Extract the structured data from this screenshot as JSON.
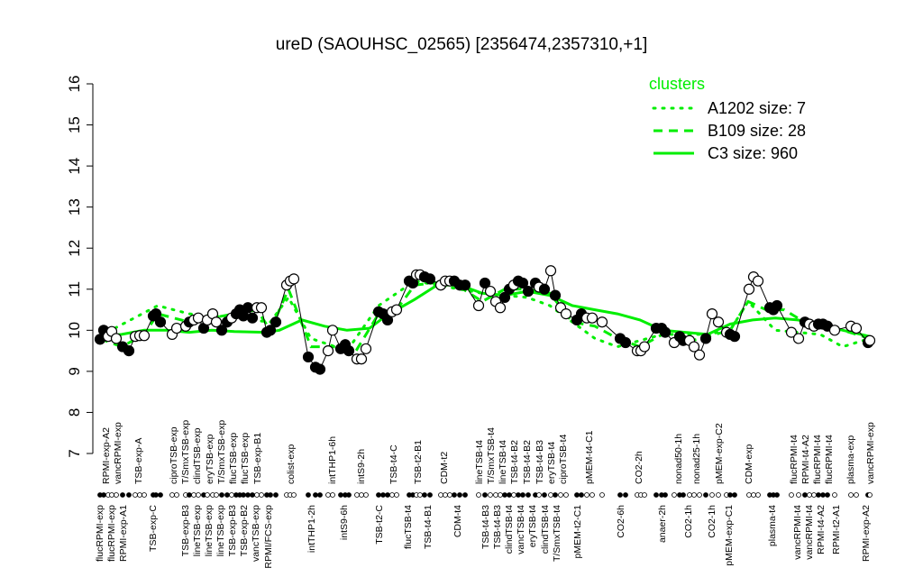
{
  "chart_data": {
    "type": "line",
    "title": "ureD (SAOUHSC_02565) [2356474,2357310,+1]",
    "xlabel": "",
    "ylabel": "",
    "xlim": [
      0,
      171
    ],
    "ylim": [
      7,
      16
    ],
    "yticks": [
      7,
      8,
      9,
      10,
      11,
      12,
      13,
      14,
      15,
      16
    ],
    "grid": false,
    "legend": {
      "title": "clusters",
      "placement": "top-right",
      "entries": [
        {
          "label": "A1202 size: 7",
          "style": "dotted"
        },
        {
          "label": "B109 size: 28",
          "style": "dashed"
        },
        {
          "label": "C3 size: 960",
          "style": "solid"
        }
      ]
    },
    "colors": {
      "clusters": "#00ee00",
      "points": "#000000"
    },
    "points": {
      "x": [
        0.2,
        1,
        2,
        2.8,
        3.8,
        5.2,
        6.6,
        8,
        9,
        10,
        12,
        12.6,
        13.6,
        16.2,
        17.2,
        19.2,
        20,
        21,
        22,
        23.2,
        24,
        25.2,
        26,
        27.2,
        28.4,
        29.4,
        30.4,
        31.2,
        32,
        33,
        34,
        35,
        36,
        37.2,
        38,
        39.2,
        41.6,
        42.4,
        43.2,
        46.4,
        48,
        49,
        50.8,
        51.8,
        53.6,
        54.6,
        55.4,
        57.2,
        58.2,
        59.2,
        62,
        63,
        64,
        65,
        66,
        68.8,
        69.6,
        70.4,
        71.2,
        72.2,
        73.4,
        75.8,
        76.8,
        77.8,
        78.8,
        80,
        81.2,
        84.2,
        85.6,
        86.8,
        88,
        89,
        90,
        91,
        92,
        93,
        94,
        95.2,
        96.8,
        97.6,
        98.8,
        100.2,
        101.2,
        102.4,
        103.6,
        106,
        107,
        108.2,
        109.4,
        111.6,
        115.6,
        116.8,
        119.4,
        120.2,
        121,
        123.6,
        124.8,
        125.6,
        127.6,
        128.8,
        129.6,
        131,
        132,
        133.2,
        134.6,
        136,
        137.4,
        139.2,
        140,
        141,
        144.2,
        145.2,
        146.2,
        148.8,
        149.6,
        150.4,
        153.6,
        155.2,
        156.6,
        157.6,
        158.6,
        159.6,
        160.6,
        161.6,
        163.2,
        166.8,
        168,
        170.6,
        171
      ],
      "y": [
        9.78,
        10.0,
        9.85,
        9.97,
        9.8,
        9.6,
        9.5,
        9.85,
        9.87,
        9.87,
        10.35,
        10.4,
        10.2,
        9.9,
        10.05,
        10.1,
        10.2,
        10.25,
        10.3,
        10.05,
        10.25,
        10.4,
        10.2,
        10.0,
        10.2,
        10.3,
        10.4,
        10.5,
        10.35,
        10.55,
        10.3,
        10.55,
        10.55,
        9.95,
        10.0,
        10.2,
        11.1,
        11.2,
        11.25,
        9.35,
        9.1,
        9.05,
        9.5,
        10.0,
        9.55,
        9.65,
        9.5,
        9.3,
        9.3,
        9.55,
        10.45,
        10.4,
        10.25,
        10.45,
        10.5,
        11.2,
        11.15,
        11.35,
        11.35,
        11.3,
        11.25,
        11.1,
        11.2,
        11.2,
        11.2,
        11.1,
        11.1,
        10.6,
        11.15,
        10.95,
        10.7,
        10.55,
        10.8,
        11.0,
        11.1,
        11.2,
        11.15,
        10.95,
        11.15,
        11.05,
        11.0,
        11.45,
        10.85,
        10.55,
        10.4,
        10.25,
        10.4,
        10.3,
        10.3,
        10.2,
        9.8,
        9.7,
        9.5,
        9.5,
        9.6,
        10.05,
        10.05,
        9.95,
        9.7,
        9.85,
        9.75,
        9.75,
        9.6,
        9.4,
        9.8,
        10.4,
        10.2,
        9.95,
        9.9,
        9.85,
        11.0,
        11.3,
        11.2,
        10.55,
        10.5,
        10.6,
        9.95,
        9.8,
        10.2,
        10.15,
        10.1,
        10.15,
        10.15,
        10.1,
        10.0,
        10.1,
        10.05,
        9.7,
        9.75
      ],
      "filled": [
        1,
        1,
        0,
        0,
        0,
        1,
        1,
        0,
        0,
        0,
        1,
        1,
        1,
        0,
        0,
        0,
        1,
        0,
        0,
        1,
        0,
        0,
        0,
        1,
        1,
        0,
        1,
        1,
        1,
        1,
        1,
        0,
        0,
        1,
        1,
        1,
        0,
        0,
        0,
        1,
        1,
        1,
        0,
        0,
        1,
        1,
        1,
        0,
        0,
        0,
        1,
        1,
        1,
        0,
        0,
        1,
        1,
        0,
        0,
        1,
        1,
        0,
        0,
        0,
        1,
        1,
        1,
        0,
        1,
        0,
        0,
        0,
        1,
        1,
        0,
        1,
        1,
        1,
        1,
        0,
        1,
        0,
        1,
        0,
        0,
        1,
        1,
        0,
        0,
        0,
        1,
        1,
        0,
        0,
        0,
        1,
        1,
        1,
        0,
        1,
        1,
        0,
        0,
        0,
        1,
        0,
        0,
        0,
        1,
        1,
        0,
        0,
        0,
        1,
        1,
        1,
        0,
        0,
        1,
        0,
        0,
        1,
        1,
        1,
        0,
        0,
        0,
        1,
        0
      ]
    },
    "series": [
      {
        "name": "C3 size: 960",
        "style": "solid",
        "x": [
          0,
          5,
          10,
          15,
          20,
          25,
          30,
          37,
          40,
          45,
          50,
          55,
          60,
          63,
          66,
          70,
          75,
          80,
          85,
          90,
          95,
          100,
          105,
          110,
          115,
          120,
          125,
          130,
          135,
          140,
          145,
          150,
          155,
          160,
          165,
          171
        ],
        "y": [
          9.85,
          9.9,
          10.0,
          10.0,
          9.95,
          10.0,
          9.97,
          9.95,
          10.0,
          10.25,
          10.1,
          10.0,
          10.05,
          10.3,
          10.5,
          10.75,
          11.1,
          11.1,
          10.9,
          10.85,
          10.95,
          10.85,
          10.6,
          10.5,
          10.4,
          10.25,
          10.0,
          9.95,
          9.9,
          10.15,
          10.25,
          10.3,
          10.25,
          10.15,
          10.0,
          9.85
        ]
      },
      {
        "name": "B109 size: 28",
        "style": "dashed",
        "x": [
          0,
          5,
          10,
          13,
          20,
          25,
          30,
          35,
          38,
          42,
          47,
          52,
          57,
          62,
          66,
          70,
          78,
          85,
          90,
          95,
          100,
          105,
          110,
          115,
          120,
          125,
          130,
          135,
          140,
          144,
          148,
          152,
          158,
          165,
          171
        ],
        "y": [
          9.8,
          9.6,
          9.9,
          10.4,
          10.2,
          10.3,
          10.4,
          10.5,
          10.0,
          11.0,
          9.6,
          9.6,
          9.5,
          10.4,
          10.5,
          11.1,
          11.2,
          10.7,
          11.0,
          11.0,
          10.9,
          10.2,
          10.1,
          9.8,
          9.6,
          9.9,
          9.7,
          9.85,
          10.0,
          10.7,
          10.5,
          10.5,
          10.1,
          10.0,
          9.8
        ]
      },
      {
        "name": "A1202 size: 7",
        "style": "dotted",
        "x": [
          0,
          13,
          20,
          30,
          38,
          42,
          47,
          55,
          62,
          70,
          85,
          95,
          100,
          110,
          115,
          125,
          135,
          140,
          144,
          150,
          160,
          165,
          171
        ],
        "y": [
          9.85,
          10.6,
          10.4,
          10.3,
          10.2,
          10.8,
          9.8,
          9.5,
          10.6,
          11.2,
          10.9,
          10.8,
          10.6,
          9.8,
          9.6,
          9.9,
          9.9,
          10.0,
          10.7,
          10.0,
          9.9,
          9.6,
          9.8
        ]
      }
    ],
    "top_labels": [
      {
        "x": 1.4,
        "label": "RPMI-exp-A2"
      },
      {
        "x": 2.8,
        "label": "vancRPMI-exp"
      },
      {
        "x": 8.6,
        "label": "TSB-exp-A"
      },
      {
        "x": 16.4,
        "label": "ciproTSB-exp"
      },
      {
        "x": 18.8,
        "label": "T/SmxTSB-exp"
      },
      {
        "x": 21.6,
        "label": "clindTSB-exp"
      },
      {
        "x": 24.4,
        "label": "eryTSB-exp"
      },
      {
        "x": 26.8,
        "label": "T/SmxTSB-exp"
      },
      {
        "x": 28.4,
        "label": "flucTSB-exp"
      },
      {
        "x": 31.6,
        "label": "flucTSB-exp"
      },
      {
        "x": 35,
        "label": "TSB-exp-B1"
      },
      {
        "x": 42.4,
        "label": "colist-exp"
      },
      {
        "x": 51.6,
        "label": "intTHP1-6h"
      },
      {
        "x": 58,
        "label": "intS9-2h"
      },
      {
        "x": 65.2,
        "label": "TSB-t4-C"
      },
      {
        "x": 70.6,
        "label": "TSB-t2-B1"
      },
      {
        "x": 76.4,
        "label": "CDM-t2"
      },
      {
        "x": 84.2,
        "label": "lineTSB-t4"
      },
      {
        "x": 86.6,
        "label": "T/SmxTSB-t4"
      },
      {
        "x": 89.2,
        "label": "lineTSB-t4"
      },
      {
        "x": 91.6,
        "label": "TSB-t4-B2"
      },
      {
        "x": 94.8,
        "label": "TSB-t4-B2"
      },
      {
        "x": 97.6,
        "label": "TSB-t4-B3"
      },
      {
        "x": 100,
        "label": "eryTSB-t4"
      },
      {
        "x": 102.2,
        "label": "ciproTSB-t4"
      },
      {
        "x": 108.6,
        "label": "pMEM-t4-C1"
      },
      {
        "x": 119.6,
        "label": "CO2-2h"
      },
      {
        "x": 128.4,
        "label": "nonad50-1h"
      },
      {
        "x": 132.4,
        "label": "nonad25-1h"
      },
      {
        "x": 137.4,
        "label": "pMEM-exp-C2"
      },
      {
        "x": 144,
        "label": "CDM-exp"
      },
      {
        "x": 154,
        "label": "flucRPMI-t4"
      },
      {
        "x": 155.2,
        "label": "RPMI-t4-A2"
      },
      {
        "x": 158.4,
        "label": "flucRPMI-t4"
      },
      {
        "x": 161.4,
        "label": "flucRPMI-t4"
      },
      {
        "x": 166.6,
        "label": "plasma-exp"
      },
      {
        "x": 171,
        "label": "vancRPMI-exp"
      }
    ],
    "bottom_labels": [
      {
        "x": 0,
        "label": "flucRPMI-exp"
      },
      {
        "x": 2.4,
        "label": "flucRPMI-exp"
      },
      {
        "x": 4.8,
        "label": "RPMI-exp-A1"
      },
      {
        "x": 11.8,
        "label": "TSB-exp-C"
      },
      {
        "x": 19,
        "label": "TSB-exp-B3"
      },
      {
        "x": 21,
        "label": "lineTSB-exp"
      },
      {
        "x": 23.6,
        "label": "lineTSB-exp"
      },
      {
        "x": 26,
        "label": "lineTSB-exp"
      },
      {
        "x": 27.2,
        "label": "TSB-exp-B3"
      },
      {
        "x": 29.2,
        "label": "TSB-exp-B2"
      },
      {
        "x": 31.8,
        "label": "vancTSB-exp"
      },
      {
        "x": 37.4,
        "label": "RPMI/FCS-exp"
      },
      {
        "x": 47,
        "label": "intTHP1-2h"
      },
      {
        "x": 54.2,
        "label": "intS9-6h"
      },
      {
        "x": 62,
        "label": "TSB-t2-C"
      },
      {
        "x": 68.4,
        "label": "flucTSB-t4"
      },
      {
        "x": 72.8,
        "label": "TSB-t4-B1"
      },
      {
        "x": 79.4,
        "label": "CDM-t4"
      },
      {
        "x": 85.6,
        "label": "TSB-t4-B3"
      },
      {
        "x": 88.2,
        "label": "TSB-t4-B3"
      },
      {
        "x": 90.6,
        "label": "clindTSB-t4"
      },
      {
        "x": 93.2,
        "label": "vancTSB-t4"
      },
      {
        "x": 95.8,
        "label": "eryTSB-t4"
      },
      {
        "x": 98.8,
        "label": "clindTSB-t4"
      },
      {
        "x": 101.2,
        "label": "T/SmxTSB-t4"
      },
      {
        "x": 106,
        "label": "pMEM-t2-C1"
      },
      {
        "x": 115.6,
        "label": "CO2-6h"
      },
      {
        "x": 124.8,
        "label": "anaer-2h"
      },
      {
        "x": 130.6,
        "label": "CO2-1h"
      },
      {
        "x": 135.8,
        "label": "CO2-1h"
      },
      {
        "x": 139.6,
        "label": "pMEM-exp-C1"
      },
      {
        "x": 149.2,
        "label": "plasma-t4"
      },
      {
        "x": 154.8,
        "label": "vancRPMI-t4"
      },
      {
        "x": 156,
        "label": "vancRPMI-t4"
      },
      {
        "x": 158.8,
        "label": "RPMI-t4-A2"
      },
      {
        "x": 163.4,
        "label": "RPMI-t2-A1"
      },
      {
        "x": 170,
        "label": "RPMI-exp-A2"
      }
    ]
  }
}
